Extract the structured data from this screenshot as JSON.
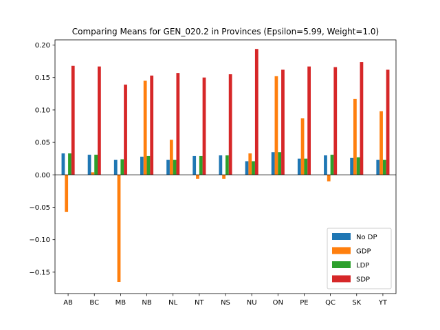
{
  "chart_data": {
    "type": "bar",
    "title": "Comparing Means for GEN_020.2 in Provinces (Epsilon=5.99, Weight=1.0)",
    "xlabel": "",
    "ylabel": "",
    "categories": [
      "AB",
      "BC",
      "MB",
      "NB",
      "NL",
      "NT",
      "NS",
      "NU",
      "ON",
      "PE",
      "QC",
      "SK",
      "YT"
    ],
    "ylim": [
      -0.183,
      0.208
    ],
    "yticks": [
      -0.15,
      -0.1,
      -0.05,
      0.0,
      0.05,
      0.1,
      0.15,
      0.2
    ],
    "ytick_labels": [
      "−0.15",
      "−0.10",
      "−0.05",
      "0.00",
      "0.05",
      "0.10",
      "0.15",
      "0.20"
    ],
    "grid": false,
    "legend_position": "lower-right",
    "series": [
      {
        "name": "No DP",
        "color": "#1f77b4",
        "values": [
          0.033,
          0.031,
          0.023,
          0.028,
          0.023,
          0.029,
          0.03,
          0.021,
          0.035,
          0.025,
          0.03,
          0.026,
          0.023
        ]
      },
      {
        "name": "GDP",
        "color": "#ff7f0e",
        "values": [
          -0.057,
          0.004,
          -0.165,
          0.145,
          0.054,
          -0.006,
          -0.006,
          0.033,
          0.152,
          0.087,
          -0.01,
          0.117,
          0.098
        ]
      },
      {
        "name": "LDP",
        "color": "#2ca02c",
        "values": [
          0.033,
          0.031,
          0.024,
          0.029,
          0.023,
          0.029,
          0.03,
          0.021,
          0.035,
          0.025,
          0.031,
          0.027,
          0.023
        ]
      },
      {
        "name": "SDP",
        "color": "#d62728",
        "values": [
          0.168,
          0.167,
          0.139,
          0.153,
          0.157,
          0.15,
          0.155,
          0.194,
          0.162,
          0.167,
          0.166,
          0.174,
          0.162
        ]
      }
    ]
  }
}
